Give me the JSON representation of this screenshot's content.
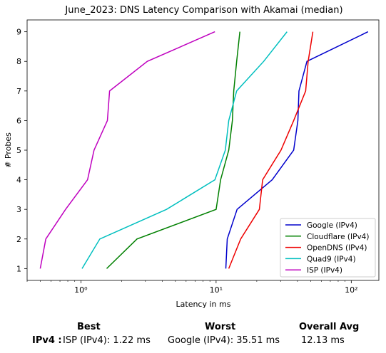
{
  "chart_data": {
    "type": "line",
    "title": "June_2023: DNS Latency Comparison with Akamai (median)",
    "xlabel": "Latency in ms",
    "ylabel": "# Probes",
    "xscale": "log",
    "xlim": [
      0.4,
      160
    ],
    "ylim": [
      0.6,
      9.4
    ],
    "xticks": [
      {
        "value": 1,
        "label": "10⁰"
      },
      {
        "value": 10,
        "label": "10¹"
      },
      {
        "value": 100,
        "label": "10²"
      }
    ],
    "yticks": [
      1,
      2,
      3,
      4,
      5,
      6,
      7,
      8,
      9
    ],
    "legend_position": "lower right",
    "grid": false,
    "series": [
      {
        "name": "Google (IPv4)",
        "color": "#0000cc",
        "x": [
          11.8,
          12.1,
          14.3,
          26.0,
          37.5,
          40.3,
          41.0,
          47.0,
          133.0
        ],
        "y": [
          1,
          2,
          3,
          4,
          5,
          6,
          7,
          8,
          9
        ]
      },
      {
        "name": "Cloudflare (IPv4)",
        "color": "#008000",
        "x": [
          1.55,
          2.6,
          10.0,
          10.8,
          12.4,
          13.2,
          13.5,
          14.2,
          15.0
        ],
        "y": [
          1,
          2,
          3,
          4,
          5,
          6,
          7,
          8,
          9
        ]
      },
      {
        "name": "OpenDNS (IPv4)",
        "color": "#ee0000",
        "x": [
          12.4,
          15.2,
          20.9,
          22.1,
          30.2,
          37.5,
          46.0,
          48.0,
          52.0
        ],
        "y": [
          1,
          2,
          3,
          4,
          5,
          6,
          7,
          8,
          9
        ]
      },
      {
        "name": "Quad9 (IPv4)",
        "color": "#00bfbf",
        "x": [
          1.02,
          1.38,
          4.3,
          9.8,
          11.7,
          12.4,
          14.2,
          22.5,
          33.5
        ],
        "y": [
          1,
          2,
          3,
          4,
          5,
          6,
          7,
          8,
          9
        ]
      },
      {
        "name": "ISP (IPv4)",
        "color": "#bf00bf",
        "x": [
          0.5,
          0.55,
          0.77,
          1.12,
          1.25,
          1.57,
          1.63,
          3.1,
          9.8
        ],
        "y": [
          1,
          2,
          3,
          4,
          5,
          6,
          7,
          8,
          9
        ]
      }
    ]
  },
  "summary": {
    "best_header": "Best",
    "worst_header": "Worst",
    "avg_header": "Overall Avg",
    "row_label": "IPv4 :",
    "best_value": "ISP (IPv4): 1.22 ms",
    "worst_value": "Google (IPv4): 35.51 ms",
    "avg_value": "12.13 ms"
  }
}
